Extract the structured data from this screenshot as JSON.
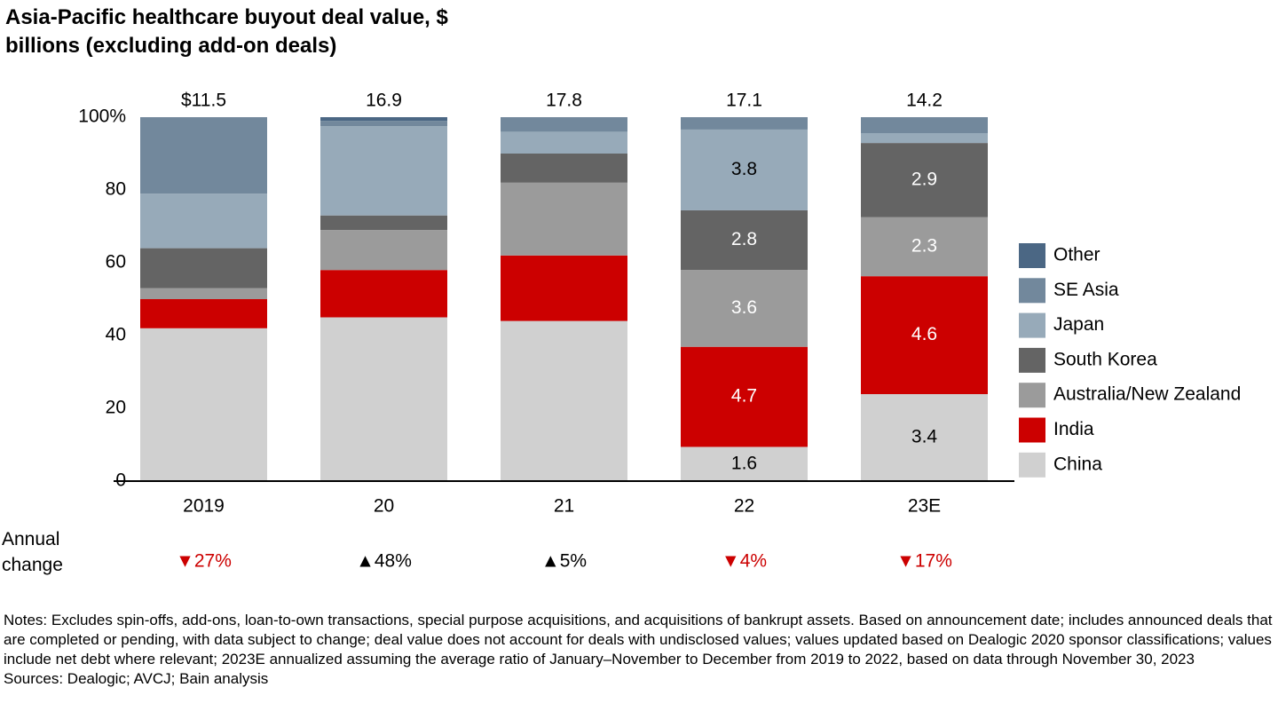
{
  "chart_data": {
    "type": "stacked_bar",
    "title": "Asia-Pacific healthcare buyout deal value, $ billions (excluding add-on deals)",
    "categories": [
      "2019",
      "20",
      "21",
      "22",
      "23E"
    ],
    "ylim": [
      0,
      100
    ],
    "yticks": [
      0,
      20,
      40,
      60,
      80,
      {
        "value": 100,
        "label": "100%"
      }
    ],
    "series": [
      {
        "name": "China",
        "color": "#d0d0d0",
        "label_color": "#000000",
        "values": [
          42,
          45,
          44,
          9.4,
          23.9
        ],
        "labels": [
          null,
          null,
          null,
          "1.6",
          "3.4"
        ]
      },
      {
        "name": "India",
        "color": "#cc0000",
        "label_color": "#ffffff",
        "values": [
          8,
          13,
          18,
          27.5,
          32.4
        ],
        "labels": [
          null,
          null,
          null,
          "4.7",
          "4.6"
        ]
      },
      {
        "name": "Australia/New Zealand",
        "color": "#9b9b9b",
        "label_color": "#ffffff",
        "values": [
          3,
          11,
          20,
          21.1,
          16.2
        ],
        "labels": [
          null,
          null,
          null,
          "3.6",
          "2.3"
        ]
      },
      {
        "name": "South Korea",
        "color": "#646464",
        "label_color": "#ffffff",
        "values": [
          11,
          4,
          8,
          16.4,
          20.4
        ],
        "labels": [
          null,
          null,
          null,
          "2.8",
          "2.9"
        ]
      },
      {
        "name": "Japan",
        "color": "#97aab9",
        "label_color": "#000000",
        "values": [
          15,
          24.5,
          6,
          22.2,
          2.7
        ],
        "labels": [
          null,
          null,
          null,
          "3.8",
          null
        ]
      },
      {
        "name": "SE Asia",
        "color": "#72889c",
        "label_color": "#ffffff",
        "values": [
          21,
          1.5,
          4,
          3.4,
          4.4
        ],
        "labels": [
          null,
          null,
          null,
          null,
          null
        ]
      },
      {
        "name": "Other",
        "color": "#4b6784",
        "label_color": "#ffffff",
        "values": [
          0,
          1,
          0,
          0,
          0
        ],
        "labels": [
          null,
          null,
          null,
          null,
          null
        ]
      }
    ],
    "totals": {
      "values": [
        11.5,
        16.9,
        17.8,
        17.1,
        14.2
      ],
      "value_labels": [
        "$11.5",
        "16.9",
        "17.8",
        "17.1",
        "14.2"
      ]
    },
    "annual_change": {
      "label": "Annual change",
      "values": [
        "▼27%",
        "▲48%",
        "▲5%",
        "▼4%",
        "▼17%"
      ],
      "colors": [
        "#cc0000",
        "#000000",
        "#000000",
        "#cc0000",
        "#cc0000"
      ]
    },
    "notes": "Notes: Excludes spin-offs, add-ons, loan-to-own transactions, special purpose acquisitions, and acquisitions of bankrupt assets. Based on announcement date; includes announced deals that are completed or pending, with data subject to change; deal value does not account for deals with undisclosed values; values updated based on Dealogic 2020 sponsor classifications; values include net debt where relevant; 2023E annualized assuming the average ratio of January–November to December from 2019 to 2022, based on data through November 30, 2023",
    "sources": "Sources: Dealogic; AVCJ; Bain analysis"
  }
}
